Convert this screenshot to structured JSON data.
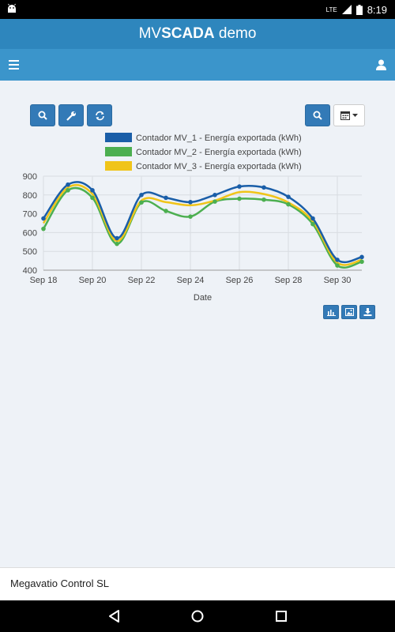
{
  "status_bar": {
    "network": "LTE",
    "time": "8:19"
  },
  "app": {
    "title_prefix": "MV",
    "title_bold": "SCADA",
    "title_suffix": " demo"
  },
  "toolbar": {
    "left_buttons": [
      "search-icon",
      "wrench-icon",
      "refresh-icon"
    ],
    "right_buttons": [
      "search-icon",
      "calendar-icon"
    ]
  },
  "chart_data": {
    "type": "line",
    "xlabel": "Date",
    "ylim": [
      400,
      900
    ],
    "yticks": [
      400,
      500,
      600,
      700,
      800,
      900
    ],
    "x": [
      "2017-09-18",
      "2017-09-19",
      "2017-09-20",
      "2017-09-21",
      "2017-09-22",
      "2017-09-23",
      "2017-09-24",
      "2017-09-25",
      "2017-09-26",
      "2017-09-27",
      "2017-09-28",
      "2017-09-29",
      "2017-09-30",
      "2017-10-01"
    ],
    "xticks": [
      "Sep 18",
      "Sep 20",
      "Sep 22",
      "Sep 24",
      "Sep 26",
      "Sep 28",
      "Sep 30"
    ],
    "grid": true,
    "legend": "top",
    "series": [
      {
        "name": "Contador MV_1 - Energía exportada (kWh)",
        "color": "#1a5ea8",
        "values": [
          675,
          855,
          825,
          570,
          800,
          785,
          762,
          800,
          845,
          840,
          790,
          675,
          455,
          470
        ]
      },
      {
        "name": "Contador MV_2 - Energía exportada (kWh)",
        "color": "#4caf50",
        "values": [
          620,
          825,
          785,
          540,
          760,
          715,
          685,
          765,
          780,
          775,
          750,
          645,
          425,
          445
        ]
      },
      {
        "name": "Contador MV_3 - Energía exportada (kWh)",
        "color": "#f0c419",
        "values": [
          650,
          840,
          805,
          555,
          770,
          762,
          745,
          770,
          815,
          805,
          760,
          660,
          440,
          455
        ]
      }
    ]
  },
  "chart_actions": [
    "chart-icon",
    "image-icon",
    "download-icon"
  ],
  "footer": {
    "company": "Megavatio Control SL"
  }
}
